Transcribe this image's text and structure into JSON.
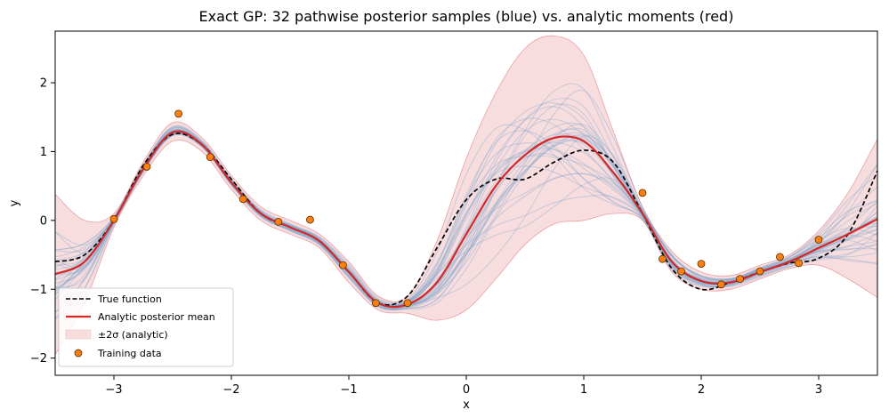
{
  "chart_data": {
    "type": "line",
    "title": "Exact GP: 32 pathwise posterior samples (blue) vs. analytic moments (red)",
    "xlabel": "x",
    "ylabel": "y",
    "xlim": [
      -3.5,
      3.5
    ],
    "ylim": [
      -2.25,
      2.75
    ],
    "x_ticks": [
      -3,
      -2,
      -1,
      0,
      1,
      2,
      3
    ],
    "y_ticks": [
      -2,
      -1,
      0,
      1,
      2
    ],
    "x_tick_labels": [
      "−3",
      "−2",
      "−1",
      "0",
      "1",
      "2",
      "3"
    ],
    "y_tick_labels": [
      "−2",
      "−1",
      "0",
      "1",
      "2"
    ],
    "grid": false,
    "legend_position": "lower-left",
    "legend": {
      "true_function": "True function",
      "posterior_mean": "Analytic posterior mean",
      "band": "±2σ (analytic)",
      "training": "Training data"
    },
    "colors": {
      "true_function": "#000000",
      "posterior_mean": "#d62728",
      "band": "#f4c7c9",
      "samples": "#7ba3c9",
      "training_fill": "#ff7f0e",
      "training_edge": "#5a2d00"
    },
    "num_samples": 32,
    "true_function": {
      "x": [
        -3.5,
        -3.25,
        -3.0,
        -2.75,
        -2.5,
        -2.25,
        -2.0,
        -1.75,
        -1.5,
        -1.25,
        -1.0,
        -0.75,
        -0.5,
        -0.25,
        0.0,
        0.25,
        0.5,
        0.75,
        1.0,
        1.25,
        1.5,
        1.75,
        2.0,
        2.25,
        2.5,
        2.75,
        3.0,
        3.25,
        3.5
      ],
      "y": [
        -0.6,
        -0.5,
        0.0,
        0.8,
        1.25,
        1.1,
        0.6,
        0.1,
        -0.1,
        -0.3,
        -0.75,
        -1.2,
        -1.1,
        -0.4,
        0.3,
        0.6,
        0.6,
        0.85,
        1.02,
        0.85,
        0.1,
        -0.7,
        -1.0,
        -0.9,
        -0.75,
        -0.62,
        -0.55,
        -0.2,
        0.72
      ]
    },
    "posterior_mean": {
      "x": [
        -3.5,
        -3.25,
        -3.0,
        -2.75,
        -2.5,
        -2.25,
        -2.0,
        -1.75,
        -1.5,
        -1.25,
        -1.0,
        -0.75,
        -0.5,
        -0.25,
        0.0,
        0.25,
        0.5,
        0.75,
        1.0,
        1.25,
        1.5,
        1.75,
        2.0,
        2.25,
        2.5,
        2.75,
        3.0,
        3.25,
        3.5
      ],
      "y": [
        -0.78,
        -0.6,
        0.0,
        0.75,
        1.28,
        1.1,
        0.55,
        0.1,
        -0.1,
        -0.3,
        -0.75,
        -1.2,
        -1.22,
        -0.9,
        -0.2,
        0.5,
        0.95,
        1.2,
        1.15,
        0.7,
        0.1,
        -0.6,
        -0.88,
        -0.9,
        -0.75,
        -0.6,
        -0.4,
        -0.2,
        0.02
      ]
    },
    "band_sigma2": {
      "x": [
        -3.5,
        -3.25,
        -3.0,
        -2.75,
        -2.5,
        -2.25,
        -2.0,
        -1.75,
        -1.5,
        -1.25,
        -1.0,
        -0.75,
        -0.5,
        -0.25,
        0.0,
        0.25,
        0.5,
        0.75,
        1.0,
        1.25,
        1.5,
        1.75,
        2.0,
        2.25,
        2.5,
        2.75,
        3.0,
        3.25,
        3.5
      ],
      "lower": [
        -1.95,
        -1.2,
        -0.1,
        0.65,
        1.15,
        1.0,
        0.45,
        0.0,
        -0.2,
        -0.4,
        -0.9,
        -1.3,
        -1.35,
        -1.45,
        -1.3,
        -0.85,
        -0.35,
        -0.05,
        0.0,
        0.1,
        0.0,
        -0.75,
        -1.0,
        -1.0,
        -0.85,
        -0.7,
        -0.65,
        -0.85,
        -1.12
      ],
      "upper": [
        0.38,
        0.0,
        0.1,
        0.85,
        1.42,
        1.2,
        0.65,
        0.2,
        0.0,
        -0.2,
        -0.6,
        -1.1,
        -1.1,
        -0.3,
        0.9,
        1.85,
        2.5,
        2.68,
        2.4,
        1.3,
        0.2,
        -0.45,
        -0.75,
        -0.8,
        -0.65,
        -0.5,
        -0.15,
        0.4,
        1.18
      ]
    },
    "training_data": {
      "x": [
        -3.0,
        -2.72,
        -2.45,
        -2.18,
        -1.9,
        -1.6,
        -1.33,
        -1.05,
        -0.77,
        -0.5,
        1.5,
        1.67,
        1.83,
        2.0,
        2.17,
        2.33,
        2.5,
        2.67,
        2.83,
        3.0
      ],
      "y": [
        0.02,
        0.78,
        1.55,
        0.92,
        0.31,
        -0.02,
        0.01,
        -0.65,
        -1.2,
        -1.2,
        0.4,
        -0.56,
        -0.74,
        -0.63,
        -0.93,
        -0.85,
        -0.74,
        -0.53,
        -0.62,
        -0.28
      ]
    }
  }
}
